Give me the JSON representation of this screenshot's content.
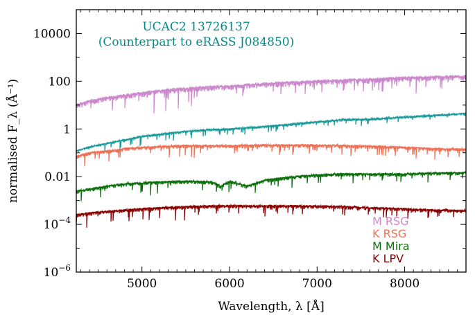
{
  "chart_data": {
    "type": "line",
    "title": "",
    "xlabel": "Wavelength, λ [Å]",
    "ylabel": "normalised F_λ (Å⁻¹)",
    "yscale": "log",
    "xlim": [
      4250,
      8700
    ],
    "ylim": [
      1e-06,
      100000.0
    ],
    "x_ticks": [
      5000,
      6000,
      7000,
      8000
    ],
    "x_tick_labels": [
      "5000",
      "6000",
      "7000",
      "8000"
    ],
    "y_ticks": [
      1e-06,
      0.0001,
      0.01,
      1,
      100,
      10000
    ],
    "y_tick_labels": [
      {
        "base": "10",
        "exp": "−6"
      },
      {
        "base": "10",
        "exp": "−4"
      },
      {
        "base": "0.01",
        "exp": ""
      },
      {
        "base": "1",
        "exp": ""
      },
      {
        "base": "100",
        "exp": ""
      },
      {
        "base": "10000",
        "exp": ""
      }
    ],
    "annotation": {
      "line1": "UCAC2 13726137",
      "line2": "(Counterpart to eRASS J084850)",
      "color": "#008b8b"
    },
    "legend_position": "bottom-right",
    "grid": false,
    "series": [
      {
        "name": "M RSG",
        "color": "#cc88cc",
        "x": [
          4250,
          4400,
          4600,
          4800,
          5000,
          5200,
          5500,
          5800,
          6000,
          6300,
          6600,
          7000,
          7300,
          7600,
          8000,
          8300,
          8700
        ],
        "y": [
          10,
          15,
          20,
          25,
          32,
          40,
          50,
          58,
          60,
          75,
          85,
          100,
          110,
          120,
          140,
          150,
          160
        ]
      },
      {
        "name": "UCAC2 13726137",
        "color": "#1a9a9a",
        "x": [
          4250,
          4400,
          4600,
          4800,
          5000,
          5200,
          5500,
          5800,
          6000,
          6300,
          6600,
          7000,
          7300,
          7600,
          8000,
          8300,
          8700
        ],
        "y": [
          0.12,
          0.18,
          0.25,
          0.35,
          0.5,
          0.6,
          0.8,
          0.95,
          1.0,
          1.2,
          1.5,
          2.0,
          2.5,
          2.6,
          3.2,
          3.7,
          4.5
        ]
      },
      {
        "name": "K RSG",
        "color": "#ee7055",
        "x": [
          4250,
          4400,
          4600,
          4800,
          5000,
          5200,
          5500,
          5800,
          6000,
          6300,
          6600,
          7000,
          7300,
          7600,
          8000,
          8300,
          8700
        ],
        "y": [
          0.07,
          0.1,
          0.12,
          0.15,
          0.17,
          0.18,
          0.2,
          0.2,
          0.2,
          0.21,
          0.21,
          0.21,
          0.2,
          0.19,
          0.17,
          0.15,
          0.14
        ]
      },
      {
        "name": "M Mira",
        "color": "#0a6e0a",
        "x": [
          4250,
          4400,
          4600,
          4800,
          5000,
          5200,
          5500,
          5800,
          5900,
          6000,
          6200,
          6400,
          6600,
          7000,
          7300,
          7600,
          8000,
          8300,
          8700
        ],
        "y": [
          0.0025,
          0.003,
          0.004,
          0.005,
          0.0055,
          0.006,
          0.0065,
          0.006,
          0.004,
          0.0065,
          0.004,
          0.007,
          0.009,
          0.012,
          0.013,
          0.013,
          0.013,
          0.014,
          0.015
        ]
      },
      {
        "name": "K LPV",
        "color": "#8b0000",
        "x": [
          4250,
          4400,
          4600,
          4800,
          5000,
          5200,
          5500,
          5800,
          6000,
          6300,
          6600,
          7000,
          7300,
          7600,
          8000,
          8300,
          8700
        ],
        "y": [
          0.00025,
          0.0003,
          0.00035,
          0.0004,
          0.00045,
          0.0005,
          0.00055,
          0.0006,
          0.0006,
          0.0006,
          0.0006,
          0.00058,
          0.00055,
          0.0005,
          0.00045,
          0.0004,
          0.00038
        ]
      }
    ],
    "legend": [
      {
        "label": "M RSG",
        "color": "#cc88cc"
      },
      {
        "label": "K RSG",
        "color": "#ee7055"
      },
      {
        "label": "M Mira",
        "color": "#0a6e0a"
      },
      {
        "label": "K LPV",
        "color": "#8b0000"
      }
    ]
  }
}
